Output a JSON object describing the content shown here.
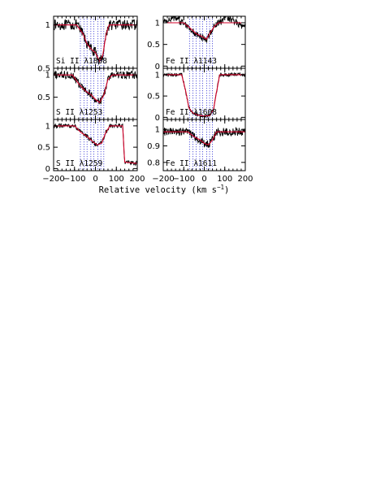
{
  "chart_data": {
    "type": "line",
    "xlabel": "Relative velocity (km s",
    "xlabel_sup": "−1",
    "xlabel_close": ")",
    "xlim": [
      -200,
      200
    ],
    "x_ticks": [
      -200,
      -100,
      0,
      100,
      200
    ],
    "x_tick_labels": [
      "−200",
      "−100",
      "0",
      "100",
      "200"
    ],
    "component_velocities": [
      -72,
      -55,
      -40,
      -22,
      -8,
      12,
      26,
      40
    ],
    "colors": {
      "data": "#000000",
      "model": "#d4002a",
      "components": "#3a3ad6"
    },
    "panels": [
      {
        "label": "Si II λ1808",
        "ylim": [
          0.5,
          1.1
        ],
        "y_ticks": [
          0.5,
          1
        ],
        "y_tick_labels": [
          "0.5",
          "1"
        ],
        "continuum": 1.0,
        "profile": [
          [
            -90,
            0.0
          ],
          [
            -60,
            0.1
          ],
          [
            -40,
            0.22
          ],
          [
            -20,
            0.28
          ],
          [
            0,
            0.32
          ],
          [
            20,
            0.42
          ],
          [
            35,
            0.35
          ],
          [
            50,
            0.12
          ],
          [
            65,
            0.0
          ]
        ],
        "noise": 0.06,
        "drift": 0.0
      },
      {
        "label": "S II λ1253",
        "ylim": [
          0.0,
          1.15
        ],
        "y_ticks": [
          0.5,
          1
        ],
        "y_tick_labels": [
          "0.5",
          "1"
        ],
        "continuum": 1.0,
        "profile": [
          [
            -110,
            0.0
          ],
          [
            -80,
            0.2
          ],
          [
            -50,
            0.35
          ],
          [
            -20,
            0.45
          ],
          [
            0,
            0.55
          ],
          [
            20,
            0.62
          ],
          [
            40,
            0.45
          ],
          [
            60,
            0.1
          ],
          [
            80,
            0.0
          ]
        ],
        "noise": 0.09,
        "drift": 0.0
      },
      {
        "label": "S II λ1259",
        "ylim": [
          -0.05,
          1.15
        ],
        "y_ticks": [
          0,
          0.5,
          1
        ],
        "y_tick_labels": [
          "0",
          "0.5",
          "1"
        ],
        "continuum": 1.0,
        "profile": [
          [
            -100,
            0.0
          ],
          [
            -70,
            0.15
          ],
          [
            -40,
            0.25
          ],
          [
            -10,
            0.38
          ],
          [
            10,
            0.45
          ],
          [
            30,
            0.4
          ],
          [
            50,
            0.15
          ],
          [
            70,
            0.0
          ]
        ],
        "noise": 0.05,
        "drift": 0.0,
        "blend_drop": [
          [
            130,
            0.0
          ],
          [
            140,
            0.85
          ],
          [
            200,
            0.88
          ]
        ]
      },
      {
        "label": "Fe II λ1143",
        "ylim": [
          -0.05,
          1.15
        ],
        "y_ticks": [
          0,
          0.5,
          1
        ],
        "y_tick_labels": [
          "0",
          "0.5",
          "1"
        ],
        "continuum": 1.0,
        "profile": [
          [
            -100,
            0.0
          ],
          [
            -70,
            0.12
          ],
          [
            -40,
            0.25
          ],
          [
            -10,
            0.32
          ],
          [
            10,
            0.38
          ],
          [
            30,
            0.22
          ],
          [
            50,
            0.08
          ],
          [
            70,
            0.0
          ]
        ],
        "noise": 0.08,
        "drift": 0.12
      },
      {
        "label": "Fe II λ1608",
        "ylim": [
          -0.05,
          1.15
        ],
        "y_ticks": [
          0,
          0.5,
          1
        ],
        "y_tick_labels": [
          "0",
          "0.5",
          "1"
        ],
        "continuum": 1.0,
        "profile": [
          [
            -110,
            0.0
          ],
          [
            -90,
            0.4
          ],
          [
            -75,
            0.78
          ],
          [
            -55,
            0.9
          ],
          [
            -30,
            0.95
          ],
          [
            0,
            0.97
          ],
          [
            25,
            0.96
          ],
          [
            45,
            0.82
          ],
          [
            60,
            0.4
          ],
          [
            75,
            0.0
          ]
        ],
        "noise": 0.04,
        "drift": 0.0
      },
      {
        "label": "Fe II λ1611",
        "ylim": [
          0.75,
          1.06
        ],
        "y_ticks": [
          0.8,
          0.9,
          1
        ],
        "y_tick_labels": [
          "0.8",
          "0.9",
          "1"
        ],
        "continuum": 0.985,
        "profile": [
          [
            -80,
            0.0
          ],
          [
            -50,
            0.03
          ],
          [
            -20,
            0.05
          ],
          [
            0,
            0.07
          ],
          [
            20,
            0.08
          ],
          [
            40,
            0.05
          ],
          [
            60,
            0.0
          ]
        ],
        "noise": 0.025,
        "drift": 0.0
      }
    ]
  }
}
